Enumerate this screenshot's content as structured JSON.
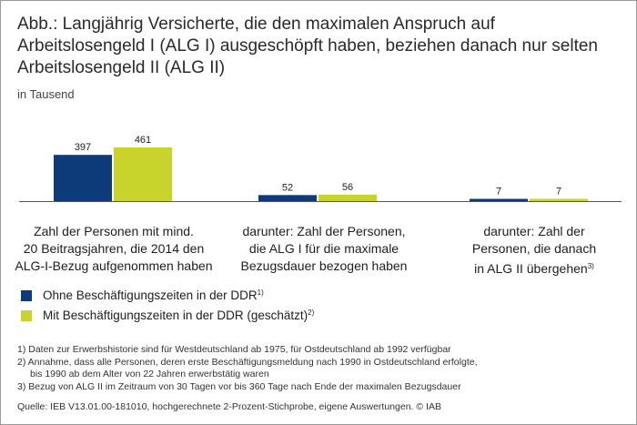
{
  "title_lines": [
    "Abb.: Langjährig Versicherte, die den maximalen Anspruch auf",
    "Arbeitslosengeld I (ALG I) ausgeschöpft haben, beziehen danach nur selten",
    "Arbeitslosengeld II (ALG II)"
  ],
  "subtitle": "in Tausend",
  "colors": {
    "series_1": "#0d3b7a",
    "series_2": "#c8d42b",
    "axis": "#555555"
  },
  "chart_data": {
    "type": "bar",
    "unit": "in Tausend",
    "categories": [
      {
        "lines": [
          "Zahl der Personen mit mind.",
          "20 Beitragsjahren, die 2014 den",
          "ALG-I-Bezug aufgenommen haben"
        ],
        "footnote": ""
      },
      {
        "lines": [
          "darunter: Zahl der Personen,",
          "die ALG I für die maximale",
          "Bezugsdauer bezogen haben"
        ],
        "footnote": ""
      },
      {
        "lines": [
          "darunter: Zahl der",
          "Personen, die danach",
          "in ALG II übergehen"
        ],
        "footnote": "3)"
      }
    ],
    "series": [
      {
        "name": "Ohne Beschäftigungszeiten in der DDR",
        "footnote": "1)",
        "values": [
          397,
          52,
          7
        ]
      },
      {
        "name": "Mit Beschäftigungszeiten in der DDR (geschätzt)",
        "footnote": "2)",
        "values": [
          461,
          56,
          7
        ]
      }
    ],
    "value_labels": [
      "397",
      "461",
      "52",
      "56",
      "7",
      "7"
    ],
    "ylim": [
      0,
      461
    ],
    "legend_position": "bottom-left",
    "grid": false
  },
  "footnotes": [
    "1) Daten zur Erwerbshistorie sind für Westdeutschland ab 1975, für Ostdeutschland ab 1992 verfügbar",
    "2) Annahme, dass alle Personen, deren erste Beschäftigungsmeldung nach 1990 in Ostdeutschland erfolgte,",
    "bis 1990 ab dem Alter von 22 Jahren erwerbstätig waren",
    "3) Bezug von ALG II im Zeitraum von 30 Tagen vor bis 360 Tage nach Ende der maximalen Bezugsdauer"
  ],
  "source": "Quelle: IEB V13.01.00-181010, hochgerechnete 2-Prozent-Stichprobe, eigene Auswertungen. © IAB"
}
